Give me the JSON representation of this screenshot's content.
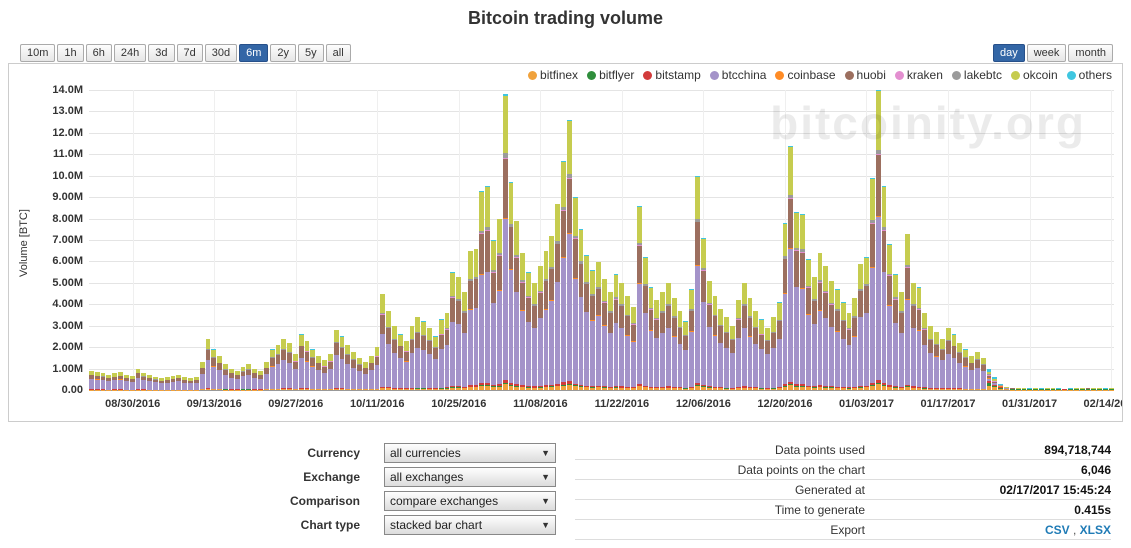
{
  "title": "Bitcoin trading volume",
  "watermark": "bitcoinity.org",
  "ui": {
    "select_arrow": "▼",
    "export_separator": " , "
  },
  "toolbar": {
    "ranges": [
      "10m",
      "1h",
      "6h",
      "24h",
      "3d",
      "7d",
      "30d",
      "6m",
      "2y",
      "5y",
      "all"
    ],
    "active_range": "6m",
    "granularities": [
      "day",
      "week",
      "month"
    ],
    "active_granularity": "day"
  },
  "chart_data": {
    "type": "stacked_bar",
    "title": "Bitcoin trading volume",
    "ylabel": "Volume [BTC]",
    "unit": "millions of BTC",
    "ylim_m_btc": [
      0,
      14
    ],
    "grid": true,
    "legend_position": "top-right",
    "y_tick_labels": [
      "14.0M",
      "13.0M",
      "12.0M",
      "11.0M",
      "10.0M",
      "9.00M",
      "8.00M",
      "7.00M",
      "6.00M",
      "5.00M",
      "4.00M",
      "3.00M",
      "2.00M",
      "1.00M",
      "0.00"
    ],
    "x_ticks": [
      {
        "label": "08/30/2016",
        "index": 7
      },
      {
        "label": "09/13/2016",
        "index": 21
      },
      {
        "label": "09/27/2016",
        "index": 35
      },
      {
        "label": "10/11/2016",
        "index": 49
      },
      {
        "label": "10/25/2016",
        "index": 63
      },
      {
        "label": "11/08/2016",
        "index": 77
      },
      {
        "label": "11/22/2016",
        "index": 91
      },
      {
        "label": "12/06/2016",
        "index": 105
      },
      {
        "label": "12/20/2016",
        "index": 119
      },
      {
        "label": "01/03/2017",
        "index": 133
      },
      {
        "label": "01/17/2017",
        "index": 147
      },
      {
        "label": "01/31/2017",
        "index": 161
      },
      {
        "label": "02/14/2017",
        "index": 175
      }
    ],
    "start_date": "08/23/2016",
    "frequency": "daily",
    "post_era_start_index": 154,
    "series": [
      {
        "name": "bitfinex",
        "color": "#f0a23c",
        "share_pre": 0.02,
        "share_post": 0.2
      },
      {
        "name": "bitflyer",
        "color": "#2f8e3c",
        "share_pre": 0.004,
        "share_post": 0.13
      },
      {
        "name": "bitstamp",
        "color": "#d23b3b",
        "share_pre": 0.01,
        "share_post": 0.1
      },
      {
        "name": "btcchina",
        "color": "#a493c9",
        "share_pre": 0.555,
        "share_post": 0.08
      },
      {
        "name": "coinbase",
        "color": "#ff8c26",
        "share_pre": 0.004,
        "share_post": 0.07
      },
      {
        "name": "huobi",
        "color": "#9c6f5f",
        "share_pre": 0.205,
        "share_post": 0.06
      },
      {
        "name": "kraken",
        "color": "#e38fd0",
        "share_pre": 0.004,
        "share_post": 0.06
      },
      {
        "name": "lakebtc",
        "color": "#9b9b9b",
        "share_pre": 0.014,
        "share_post": 0.03
      },
      {
        "name": "okcoin",
        "color": "#c6cc4f",
        "share_pre": 0.2,
        "share_post": 0.12
      },
      {
        "name": "others",
        "color": "#3fc6e0",
        "share_pre": 0.004,
        "share_post": 0.15
      }
    ],
    "totals_m_btc": [
      0.9,
      0.85,
      0.8,
      0.72,
      0.78,
      0.85,
      0.7,
      0.65,
      1.0,
      0.8,
      0.7,
      0.62,
      0.55,
      0.6,
      0.65,
      0.7,
      0.6,
      0.55,
      0.6,
      1.3,
      2.4,
      1.9,
      1.6,
      1.2,
      1.0,
      0.9,
      1.1,
      1.2,
      1.0,
      0.9,
      1.3,
      1.9,
      2.1,
      2.4,
      2.2,
      1.7,
      2.6,
      2.3,
      1.9,
      1.6,
      1.4,
      1.7,
      2.8,
      2.5,
      2.1,
      1.8,
      1.5,
      1.3,
      1.6,
      2.0,
      4.5,
      3.7,
      3.0,
      2.6,
      2.3,
      3.0,
      3.4,
      3.2,
      2.9,
      2.5,
      3.3,
      3.6,
      5.5,
      5.3,
      4.6,
      6.5,
      6.6,
      9.3,
      9.5,
      7.0,
      8.0,
      13.8,
      9.7,
      7.9,
      6.4,
      5.5,
      5.0,
      5.8,
      6.5,
      7.2,
      8.7,
      10.7,
      12.6,
      9.0,
      7.5,
      6.3,
      5.6,
      6.0,
      5.2,
      4.6,
      5.4,
      5.0,
      4.4,
      3.9,
      8.6,
      6.2,
      4.8,
      4.2,
      4.6,
      5.0,
      4.3,
      3.7,
      3.2,
      4.7,
      10.0,
      7.1,
      5.1,
      4.4,
      3.8,
      3.4,
      3.0,
      4.2,
      5.0,
      4.3,
      3.7,
      3.3,
      2.9,
      3.4,
      4.1,
      7.8,
      11.4,
      8.3,
      8.2,
      6.1,
      5.3,
      6.4,
      5.8,
      5.1,
      4.7,
      4.1,
      3.6,
      4.3,
      5.9,
      6.2,
      9.9,
      14.0,
      9.5,
      6.8,
      5.4,
      4.6,
      7.3,
      5.0,
      4.8,
      3.6,
      3.0,
      2.7,
      2.4,
      2.9,
      2.6,
      2.2,
      1.9,
      1.6,
      1.8,
      1.5,
      1.0,
      0.6,
      0.3,
      0.15,
      0.12,
      0.1,
      0.09,
      0.08,
      0.09,
      0.08,
      0.1,
      0.09,
      0.08,
      0.07,
      0.08,
      0.09,
      0.1,
      0.12,
      0.1,
      0.09,
      0.08,
      0.1
    ]
  },
  "controls": [
    {
      "label": "Currency",
      "value": "all currencies"
    },
    {
      "label": "Exchange",
      "value": "all exchanges"
    },
    {
      "label": "Comparison",
      "value": "compare exchanges"
    },
    {
      "label": "Chart type",
      "value": "stacked bar chart"
    }
  ],
  "stats": [
    {
      "label": "Data points used",
      "value": "894,718,744"
    },
    {
      "label": "Data points on the chart",
      "value": "6,046"
    },
    {
      "label": "Generated at",
      "value": "02/17/2017 15:45:24"
    },
    {
      "label": "Time to generate",
      "value": "0.415s"
    },
    {
      "label": "Export",
      "links": [
        "CSV",
        "XLSX"
      ]
    }
  ]
}
